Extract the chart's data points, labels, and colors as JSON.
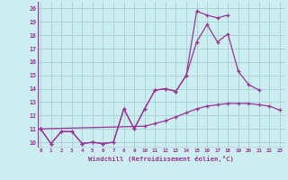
{
  "xlabel": "Windchill (Refroidissement éolien,°C)",
  "background_color": "#cceef0",
  "grid_color": "#aad4d8",
  "line_color": "#993399",
  "x_ticks": [
    0,
    1,
    2,
    3,
    4,
    5,
    6,
    7,
    8,
    9,
    10,
    11,
    12,
    13,
    14,
    15,
    16,
    17,
    18,
    19,
    20,
    21,
    22,
    23
  ],
  "y_ticks": [
    10,
    11,
    12,
    13,
    14,
    15,
    16,
    17,
    18,
    19,
    20
  ],
  "xlim": [
    -0.3,
    23.5
  ],
  "ylim": [
    9.6,
    20.5
  ],
  "line1_x": [
    0,
    1,
    2,
    3,
    4,
    5,
    6,
    7,
    8,
    9,
    10,
    11,
    12,
    13,
    14,
    15,
    16,
    17,
    18,
    19,
    20,
    21,
    22,
    23
  ],
  "line1_y": [
    11.0,
    9.9,
    10.8,
    10.8,
    9.9,
    10.0,
    9.9,
    10.0,
    12.5,
    11.0,
    12.5,
    13.9,
    14.0,
    13.8,
    15.0,
    19.8,
    19.5,
    19.3,
    19.5,
    null,
    null,
    null,
    null,
    null
  ],
  "line2_x": [
    0,
    1,
    2,
    3,
    4,
    5,
    6,
    7,
    8,
    9,
    10,
    11,
    12,
    13,
    14,
    15,
    16,
    17,
    18,
    19,
    20,
    21,
    22,
    23
  ],
  "line2_y": [
    11.0,
    9.9,
    10.8,
    10.8,
    9.9,
    10.0,
    9.9,
    10.0,
    12.5,
    11.0,
    12.5,
    13.9,
    14.0,
    13.8,
    15.0,
    17.5,
    18.8,
    17.5,
    18.1,
    15.3,
    14.3,
    13.9,
    null,
    null
  ],
  "line3_x": [
    0,
    1,
    2,
    3,
    4,
    5,
    6,
    7,
    8,
    9,
    10,
    11,
    12,
    13,
    14,
    15,
    16,
    17,
    18,
    19,
    20,
    21,
    22,
    23
  ],
  "line3_y": [
    11.0,
    null,
    null,
    null,
    null,
    null,
    null,
    null,
    null,
    null,
    11.2,
    11.4,
    11.6,
    11.9,
    12.2,
    12.5,
    12.7,
    12.8,
    12.9,
    12.9,
    12.9,
    12.8,
    12.7,
    12.4
  ]
}
